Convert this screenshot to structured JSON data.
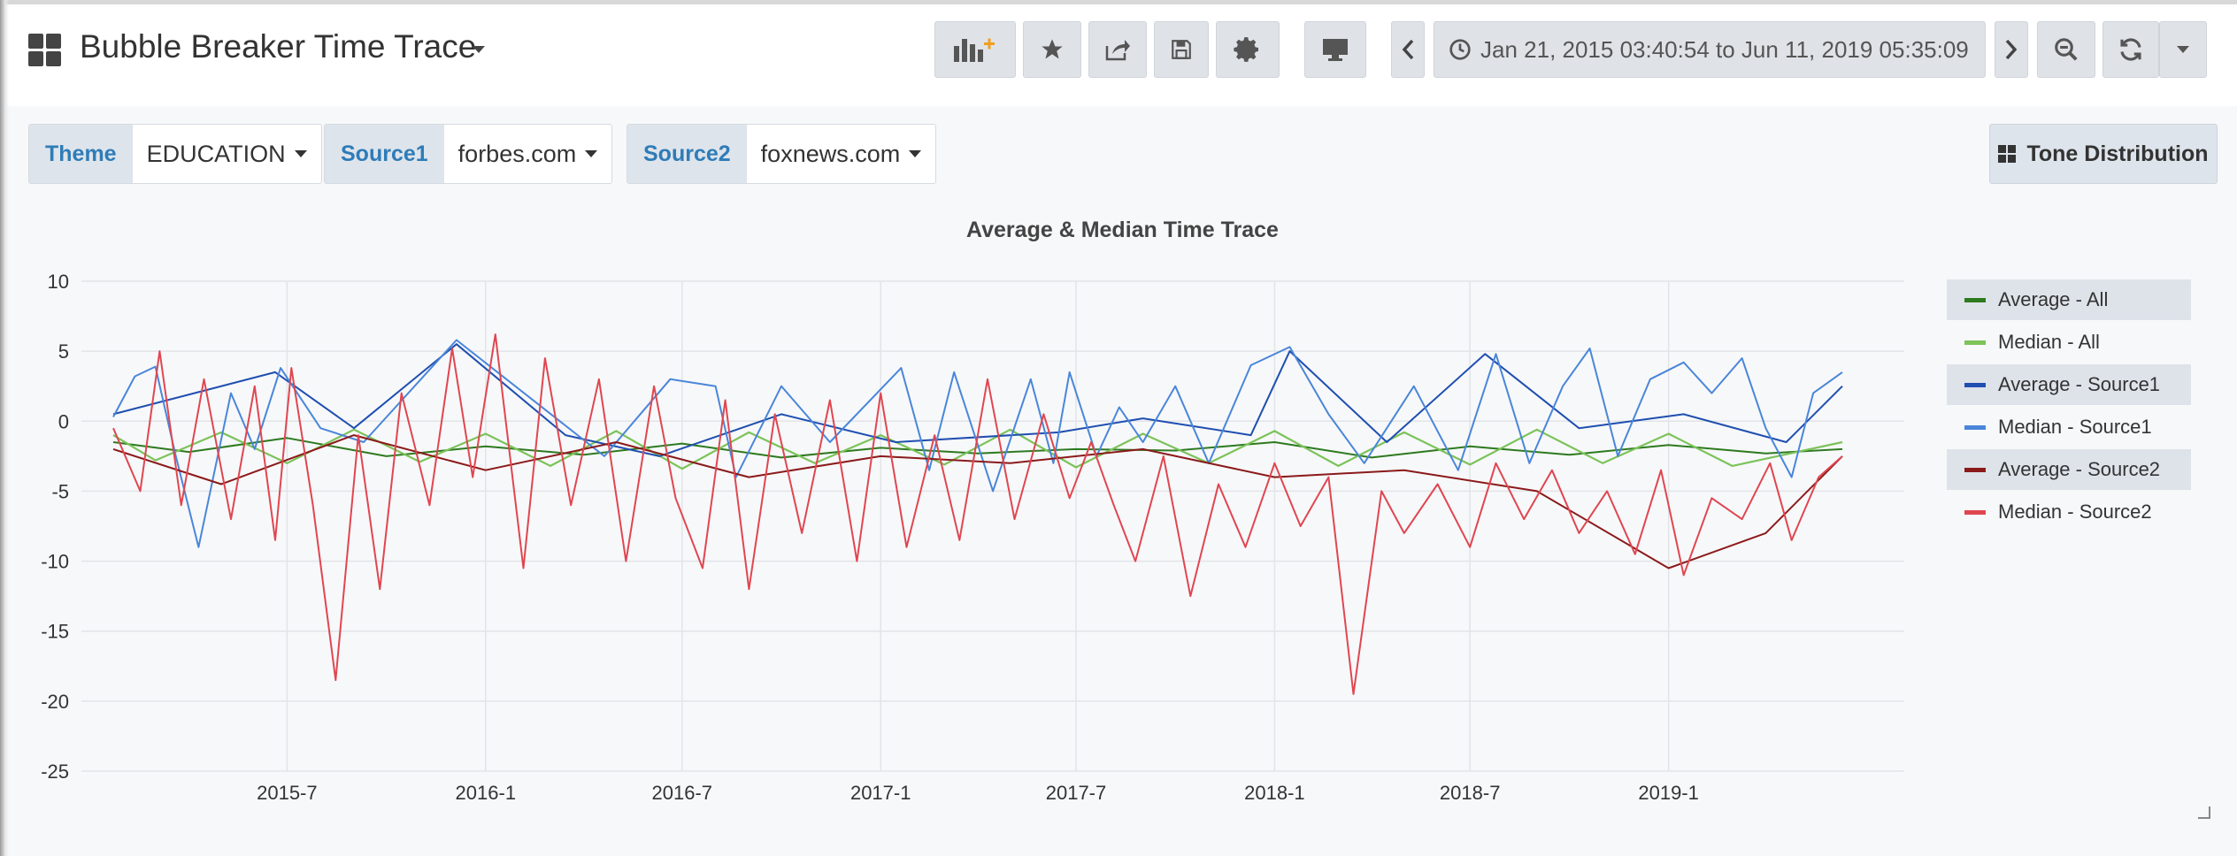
{
  "header": {
    "title": "Bubble Breaker Time Trace",
    "time_range": "Jan 21, 2015 03:40:54 to Jun 11, 2019 05:35:09"
  },
  "toolbar": {
    "icons": [
      "add-panel-icon",
      "star-icon",
      "share-icon",
      "save-icon",
      "gear-icon",
      "monitor-icon",
      "chevron-left-icon",
      "clock-icon",
      "chevron-right-icon",
      "zoom-out-icon",
      "refresh-icon",
      "caret-down-icon"
    ]
  },
  "variables": [
    {
      "label": "Theme",
      "value": "EDUCATION"
    },
    {
      "label": "Source1",
      "value": "forbes.com"
    },
    {
      "label": "Source2",
      "value": "foxnews.com"
    }
  ],
  "tone_button": "Tone Distribution",
  "chart_data": {
    "type": "line",
    "title": "Average & Median Time Trace",
    "x_range": [
      "2015-01-21",
      "2019-06-11"
    ],
    "x_ticks": [
      "2015-7",
      "2016-1",
      "2016-7",
      "2017-1",
      "2017-7",
      "2018-1",
      "2018-7",
      "2019-1"
    ],
    "x_tick_dates": [
      "2015-07-01",
      "2016-01-01",
      "2016-07-01",
      "2017-01-01",
      "2017-07-01",
      "2018-01-01",
      "2018-07-01",
      "2019-01-01"
    ],
    "ylim": [
      -25,
      10
    ],
    "y_ticks": [
      "10",
      "5",
      "0",
      "-5",
      "-10",
      "-15",
      "-20",
      "-25"
    ],
    "y_tick_values": [
      10,
      5,
      0,
      -5,
      -10,
      -15,
      -20,
      -25
    ],
    "grid": true,
    "legend_position": "right",
    "series": [
      {
        "name": "Average - All",
        "color": "#2d7a1f",
        "points": [
          [
            "2015-01-21",
            -1.5
          ],
          [
            "2015-04-01",
            -2.2
          ],
          [
            "2015-07-01",
            -1.2
          ],
          [
            "2015-10-01",
            -2.5
          ],
          [
            "2016-01-01",
            -1.8
          ],
          [
            "2016-04-01",
            -2.4
          ],
          [
            "2016-07-01",
            -1.6
          ],
          [
            "2016-10-01",
            -2.6
          ],
          [
            "2017-01-01",
            -1.9
          ],
          [
            "2017-04-01",
            -2.3
          ],
          [
            "2017-07-01",
            -2.0
          ],
          [
            "2017-10-01",
            -2.1
          ],
          [
            "2018-01-01",
            -1.5
          ],
          [
            "2018-04-01",
            -2.6
          ],
          [
            "2018-07-01",
            -1.8
          ],
          [
            "2018-10-01",
            -2.4
          ],
          [
            "2019-01-01",
            -1.7
          ],
          [
            "2019-04-01",
            -2.3
          ],
          [
            "2019-06-11",
            -2.0
          ]
        ]
      },
      {
        "name": "Median - All",
        "color": "#7cc35a",
        "points": [
          [
            "2015-01-21",
            -1.0
          ],
          [
            "2015-03-01",
            -2.8
          ],
          [
            "2015-05-01",
            -0.8
          ],
          [
            "2015-07-01",
            -3.0
          ],
          [
            "2015-09-01",
            -0.6
          ],
          [
            "2015-11-01",
            -2.9
          ],
          [
            "2016-01-01",
            -0.9
          ],
          [
            "2016-03-01",
            -3.2
          ],
          [
            "2016-05-01",
            -0.7
          ],
          [
            "2016-07-01",
            -3.4
          ],
          [
            "2016-09-01",
            -0.8
          ],
          [
            "2016-11-01",
            -3.0
          ],
          [
            "2017-01-01",
            -1.0
          ],
          [
            "2017-03-01",
            -3.1
          ],
          [
            "2017-05-01",
            -0.6
          ],
          [
            "2017-07-01",
            -3.3
          ],
          [
            "2017-09-01",
            -0.9
          ],
          [
            "2017-11-01",
            -3.0
          ],
          [
            "2018-01-01",
            -0.7
          ],
          [
            "2018-03-01",
            -3.2
          ],
          [
            "2018-05-01",
            -0.8
          ],
          [
            "2018-07-01",
            -3.1
          ],
          [
            "2018-09-01",
            -0.6
          ],
          [
            "2018-11-01",
            -3.0
          ],
          [
            "2019-01-01",
            -0.9
          ],
          [
            "2019-03-01",
            -3.2
          ],
          [
            "2019-06-11",
            -1.5
          ]
        ]
      },
      {
        "name": "Average - Source1",
        "color": "#1f4fb0",
        "points": [
          [
            "2015-01-21",
            0.5
          ],
          [
            "2015-06-20",
            3.5
          ],
          [
            "2015-09-01",
            -0.5
          ],
          [
            "2015-12-05",
            5.5
          ],
          [
            "2016-03-15",
            -1.0
          ],
          [
            "2016-06-10",
            -2.5
          ],
          [
            "2016-10-01",
            0.5
          ],
          [
            "2017-01-15",
            -1.5
          ],
          [
            "2017-06-15",
            -0.8
          ],
          [
            "2017-09-01",
            0.2
          ],
          [
            "2017-12-10",
            -1.0
          ],
          [
            "2018-01-15",
            5.0
          ],
          [
            "2018-04-15",
            -1.5
          ],
          [
            "2018-07-15",
            4.8
          ],
          [
            "2018-10-10",
            -0.5
          ],
          [
            "2019-01-15",
            0.5
          ],
          [
            "2019-04-20",
            -1.5
          ],
          [
            "2019-06-11",
            2.5
          ]
        ]
      },
      {
        "name": "Median - Source1",
        "color": "#4a86d9",
        "points": [
          [
            "2015-01-21",
            0.3
          ],
          [
            "2015-02-10",
            3.2
          ],
          [
            "2015-03-01",
            3.9
          ],
          [
            "2015-03-20",
            -2.5
          ],
          [
            "2015-04-10",
            -9.0
          ],
          [
            "2015-05-10",
            2.0
          ],
          [
            "2015-06-01",
            -2.0
          ],
          [
            "2015-06-25",
            3.8
          ],
          [
            "2015-08-01",
            -0.5
          ],
          [
            "2015-09-10",
            -1.5
          ],
          [
            "2015-12-05",
            5.8
          ],
          [
            "2016-04-20",
            -2.5
          ],
          [
            "2016-06-20",
            3.0
          ],
          [
            "2016-08-01",
            2.5
          ],
          [
            "2016-08-20",
            -4.0
          ],
          [
            "2016-10-01",
            2.5
          ],
          [
            "2016-11-15",
            -1.5
          ],
          [
            "2017-01-20",
            3.8
          ],
          [
            "2017-02-15",
            -3.5
          ],
          [
            "2017-03-10",
            3.5
          ],
          [
            "2017-04-15",
            -5.0
          ],
          [
            "2017-05-20",
            3.0
          ],
          [
            "2017-06-10",
            -3.0
          ],
          [
            "2017-06-25",
            3.5
          ],
          [
            "2017-07-20",
            -2.5
          ],
          [
            "2017-08-10",
            1.0
          ],
          [
            "2017-09-01",
            -1.5
          ],
          [
            "2017-10-01",
            2.5
          ],
          [
            "2017-11-01",
            -3.0
          ],
          [
            "2017-12-10",
            4.0
          ],
          [
            "2018-01-15",
            5.3
          ],
          [
            "2018-02-20",
            0.5
          ],
          [
            "2018-03-25",
            -3.0
          ],
          [
            "2018-05-10",
            2.5
          ],
          [
            "2018-06-20",
            -3.5
          ],
          [
            "2018-07-25",
            4.8
          ],
          [
            "2018-08-25",
            -3.0
          ],
          [
            "2018-09-25",
            2.5
          ],
          [
            "2018-10-20",
            5.2
          ],
          [
            "2018-11-15",
            -2.5
          ],
          [
            "2018-12-15",
            3.0
          ],
          [
            "2019-01-15",
            4.2
          ],
          [
            "2019-02-10",
            2.0
          ],
          [
            "2019-03-10",
            4.5
          ],
          [
            "2019-04-01",
            -0.5
          ],
          [
            "2019-04-25",
            -4.0
          ],
          [
            "2019-05-15",
            2.0
          ],
          [
            "2019-06-11",
            3.5
          ]
        ]
      },
      {
        "name": "Average - Source2",
        "color": "#8b1a1a",
        "points": [
          [
            "2015-01-21",
            -2.0
          ],
          [
            "2015-05-01",
            -4.5
          ],
          [
            "2015-09-01",
            -1.0
          ],
          [
            "2016-01-01",
            -3.5
          ],
          [
            "2016-05-01",
            -1.5
          ],
          [
            "2016-09-01",
            -4.0
          ],
          [
            "2017-01-01",
            -2.5
          ],
          [
            "2017-05-01",
            -3.0
          ],
          [
            "2017-09-01",
            -2.0
          ],
          [
            "2018-01-01",
            -4.0
          ],
          [
            "2018-05-01",
            -3.5
          ],
          [
            "2018-09-01",
            -5.0
          ],
          [
            "2019-01-01",
            -10.5
          ],
          [
            "2019-04-01",
            -8.0
          ],
          [
            "2019-06-11",
            -2.5
          ]
        ]
      },
      {
        "name": "Median - Source2",
        "color": "#e04650",
        "points": [
          [
            "2015-01-21",
            -0.5
          ],
          [
            "2015-02-15",
            -5.0
          ],
          [
            "2015-03-05",
            5.0
          ],
          [
            "2015-03-25",
            -6.0
          ],
          [
            "2015-04-15",
            3.0
          ],
          [
            "2015-05-10",
            -7.0
          ],
          [
            "2015-06-01",
            2.5
          ],
          [
            "2015-06-20",
            -8.5
          ],
          [
            "2015-07-05",
            3.8
          ],
          [
            "2015-07-25",
            -6.0
          ],
          [
            "2015-08-15",
            -18.5
          ],
          [
            "2015-09-05",
            -1.0
          ],
          [
            "2015-09-25",
            -12.0
          ],
          [
            "2015-10-15",
            2.0
          ],
          [
            "2015-11-10",
            -6.0
          ],
          [
            "2015-12-01",
            5.2
          ],
          [
            "2015-12-20",
            -4.0
          ],
          [
            "2016-01-10",
            6.2
          ],
          [
            "2016-02-05",
            -10.5
          ],
          [
            "2016-02-25",
            4.5
          ],
          [
            "2016-03-20",
            -6.0
          ],
          [
            "2016-04-15",
            3.0
          ],
          [
            "2016-05-10",
            -10.0
          ],
          [
            "2016-06-05",
            2.5
          ],
          [
            "2016-06-25",
            -5.5
          ],
          [
            "2016-07-20",
            -10.5
          ],
          [
            "2016-08-10",
            1.5
          ],
          [
            "2016-09-01",
            -12.0
          ],
          [
            "2016-09-25",
            0.5
          ],
          [
            "2016-10-20",
            -8.0
          ],
          [
            "2016-11-15",
            1.5
          ],
          [
            "2016-12-10",
            -10.0
          ],
          [
            "2017-01-01",
            2.0
          ],
          [
            "2017-01-25",
            -9.0
          ],
          [
            "2017-02-20",
            -1.0
          ],
          [
            "2017-03-15",
            -8.5
          ],
          [
            "2017-04-10",
            3.0
          ],
          [
            "2017-05-05",
            -7.0
          ],
          [
            "2017-06-01",
            0.5
          ],
          [
            "2017-06-25",
            -5.5
          ],
          [
            "2017-07-15",
            -1.5
          ],
          [
            "2017-08-05",
            -6.0
          ],
          [
            "2017-08-25",
            -10.0
          ],
          [
            "2017-09-20",
            -2.5
          ],
          [
            "2017-10-15",
            -12.5
          ],
          [
            "2017-11-10",
            -4.5
          ],
          [
            "2017-12-05",
            -9.0
          ],
          [
            "2018-01-01",
            -3.0
          ],
          [
            "2018-01-25",
            -7.5
          ],
          [
            "2018-02-20",
            -4.0
          ],
          [
            "2018-03-15",
            -19.5
          ],
          [
            "2018-04-10",
            -5.0
          ],
          [
            "2018-05-01",
            -8.0
          ],
          [
            "2018-06-01",
            -4.5
          ],
          [
            "2018-07-01",
            -9.0
          ],
          [
            "2018-07-25",
            -3.0
          ],
          [
            "2018-08-20",
            -7.0
          ],
          [
            "2018-09-15",
            -3.5
          ],
          [
            "2018-10-10",
            -8.0
          ],
          [
            "2018-11-05",
            -5.0
          ],
          [
            "2018-12-01",
            -9.5
          ],
          [
            "2018-12-25",
            -3.5
          ],
          [
            "2019-01-15",
            -11.0
          ],
          [
            "2019-02-10",
            -5.5
          ],
          [
            "2019-03-10",
            -7.0
          ],
          [
            "2019-04-05",
            -3.0
          ],
          [
            "2019-04-25",
            -8.5
          ],
          [
            "2019-05-20",
            -4.0
          ],
          [
            "2019-06-11",
            -2.5
          ]
        ]
      }
    ]
  }
}
